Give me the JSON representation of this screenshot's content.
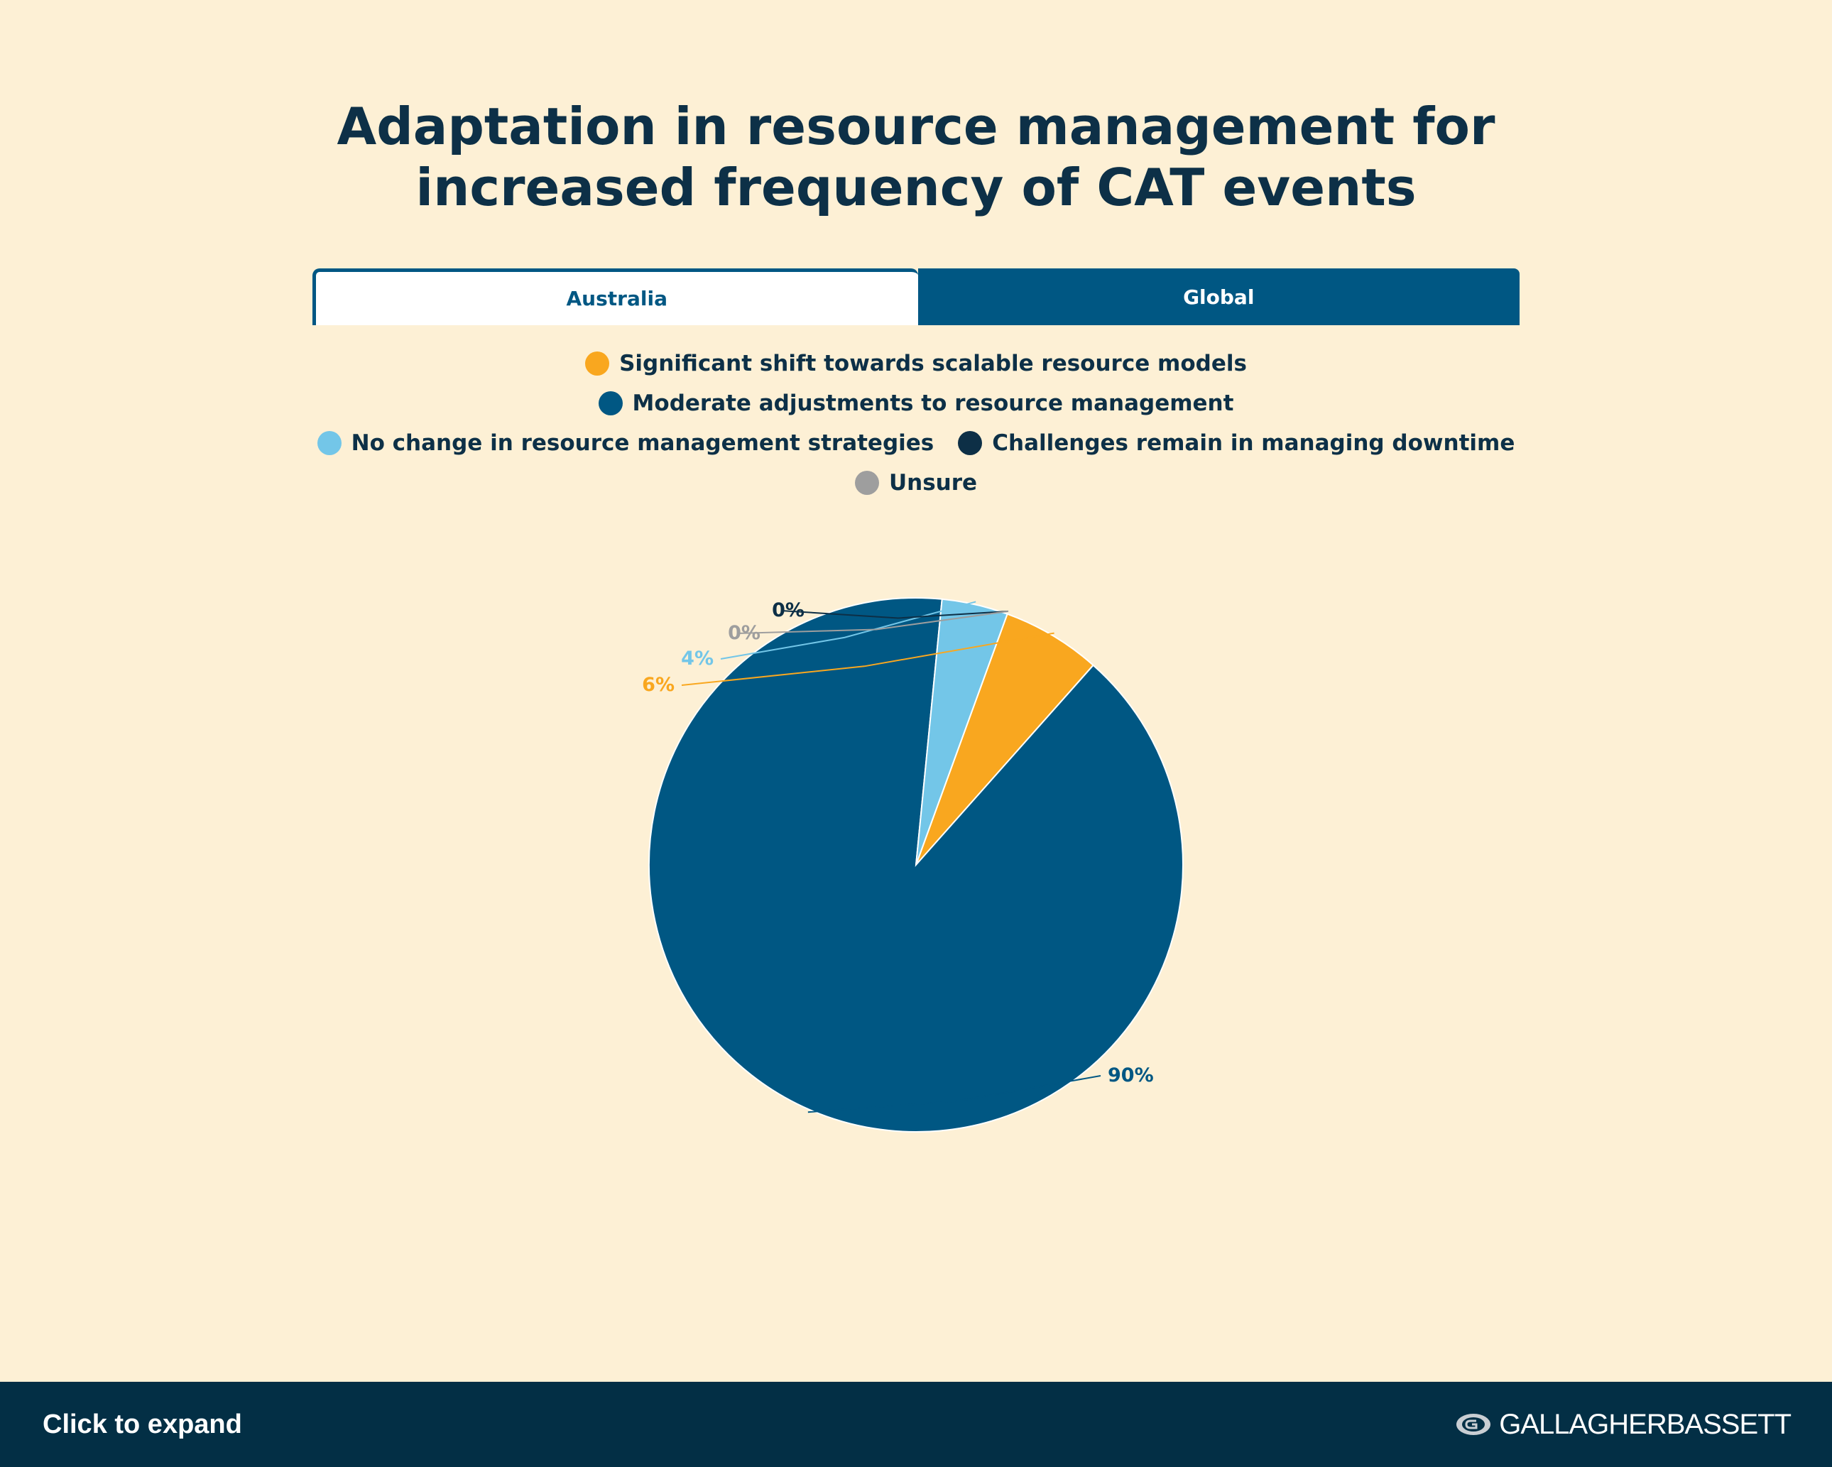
{
  "title_lines": [
    "Adaptation in resource management for",
    "increased frequency of CAT events"
  ],
  "tabs": [
    {
      "label": "Australia",
      "active": true
    },
    {
      "label": "Global",
      "active": false
    }
  ],
  "colors": {
    "orange": "#f9a71f",
    "blue": "#005783",
    "light_blue": "#73c6e8",
    "navy": "#0d2f46",
    "gray": "#9e9e9e"
  },
  "chart_data": {
    "type": "pie",
    "series": [
      {
        "name": "Significant shift towards scalable resource models",
        "value": 6,
        "label": "6%",
        "color": "#f9a71f"
      },
      {
        "name": "Moderate adjustments to resource management",
        "value": 90,
        "label": "90%",
        "color": "#005783"
      },
      {
        "name": "No change in resource management strategies",
        "value": 4,
        "label": "4%",
        "color": "#73c6e8"
      },
      {
        "name": "Challenges remain in managing downtime",
        "value": 0,
        "label": "0%",
        "color": "#0d2f46"
      },
      {
        "name": "Unsure",
        "value": 0,
        "label": "0%",
        "color": "#9e9e9e"
      }
    ],
    "legend_position": "top"
  },
  "footer": {
    "expand_label": "Click to expand",
    "logo_text": "GALLAGHERBASSETT"
  }
}
